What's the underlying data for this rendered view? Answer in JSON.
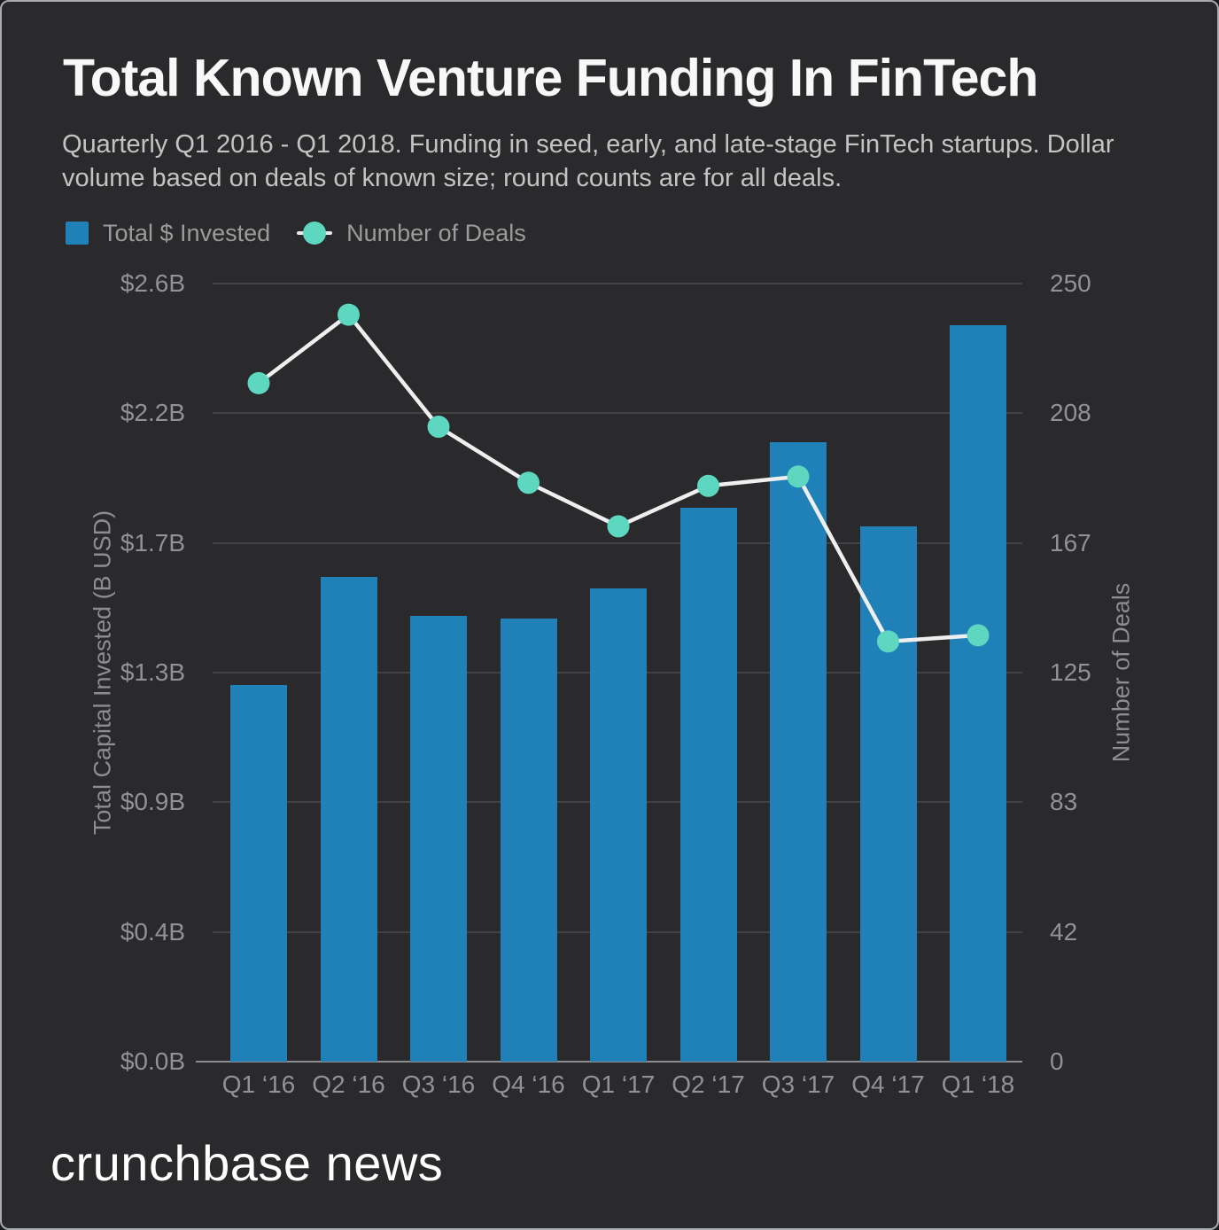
{
  "page": {
    "background": "#2a2a2c",
    "frame_border": "#a9adb2"
  },
  "header": {
    "title": "Total Known Venture Funding In FinTech",
    "subtitle": "Quarterly Q1 2016 - Q1 2018. Funding in seed, early, and late-stage FinTech startups. Dollar volume based on deals of known size; round counts are for all deals."
  },
  "legend": {
    "items": [
      {
        "label": "Total $ Invested",
        "marker": "square",
        "color": "#2081b9"
      },
      {
        "label": "Number of Deals",
        "marker": "line-dot",
        "color": "#5dd7bf"
      }
    ]
  },
  "footer": {
    "brand": "crunchbase news"
  },
  "chart_data": {
    "type": "bar",
    "subtype": "dual-axis-bar-line",
    "categories": [
      "Q1 ‘16",
      "Q2 ‘16",
      "Q3 ‘16",
      "Q4 ‘16",
      "Q1 ‘17",
      "Q2 ‘17",
      "Q3 ‘17",
      "Q4 ‘17",
      "Q1 ‘18"
    ],
    "series": [
      {
        "name": "Total $ Invested",
        "type": "bar",
        "axis": "left",
        "unit": "B USD",
        "color": "#2081b9",
        "values": [
          1.26,
          1.62,
          1.49,
          1.48,
          1.58,
          1.85,
          2.07,
          1.79,
          2.46
        ]
      },
      {
        "name": "Number of Deals",
        "type": "line",
        "axis": "right",
        "marker_color": "#5dd7bf",
        "line_color": "#efefef",
        "values": [
          218,
          240,
          204,
          186,
          172,
          185,
          188,
          135,
          137
        ]
      }
    ],
    "left_axis": {
      "title": "Total Capital Invested (B USD)",
      "range": [
        0,
        2.6
      ],
      "tick_labels": [
        "$2.6B",
        "$2.2B",
        "$1.7B",
        "$1.3B",
        "$0.9B",
        "$0.4B",
        "$0.0B"
      ]
    },
    "right_axis": {
      "title": "Number of Deals",
      "range": [
        0,
        250
      ],
      "tick_labels": [
        "250",
        "208",
        "167",
        "125",
        "83",
        "42",
        "0"
      ]
    },
    "grid": true,
    "gridline_color": "#424245",
    "baseline_color": "#8e8e90",
    "legend_position": "top-left"
  }
}
